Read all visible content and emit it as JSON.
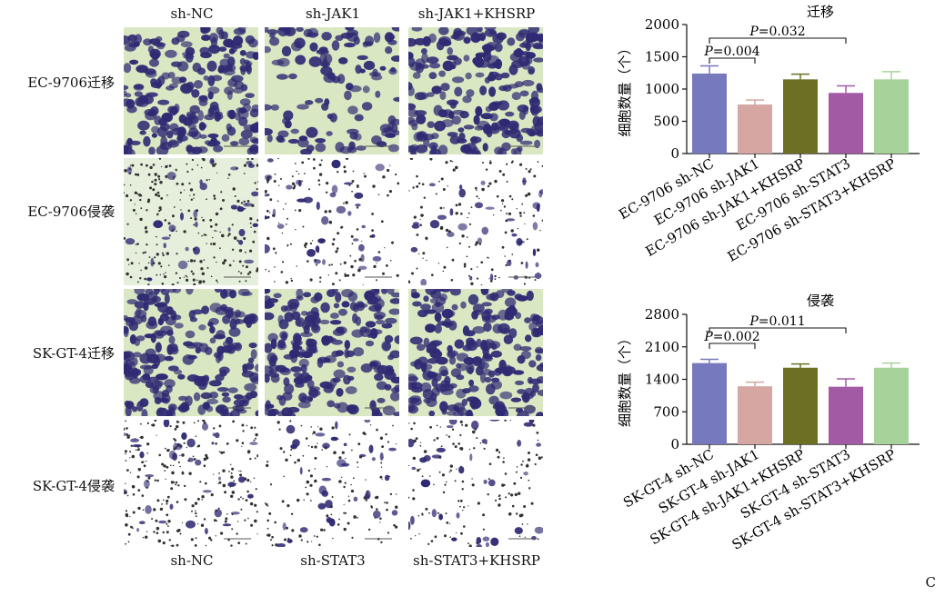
{
  "figure": {
    "col_labels_top": [
      "sh-NC",
      "sh-JAK1",
      "sh-JAK1+KHSRP"
    ],
    "col_labels_bottom": [
      "sh-NC",
      "sh-STAT3",
      "sh-STAT3+KHSRP"
    ],
    "row_labels": [
      "EC-9706迁移",
      "EC-9706侵袭",
      "SK-GT-4迁移",
      "SK-GT-4侵袭"
    ],
    "panel_letter": "C",
    "micrograph_style": {
      "migration_background": "#d9e8c3",
      "invasion_background": "#ffffff",
      "cell_color": "#2f2a73"
    }
  },
  "chart_data": [
    {
      "type": "bar",
      "title": "迁移",
      "ylabel": "细胞数量（个）",
      "xlabel": "",
      "ylim": [
        0,
        2000
      ],
      "yticks": [
        0,
        500,
        1000,
        1500,
        2000
      ],
      "categories": [
        "EC-9706 sh-NC",
        "EC-9706 sh-JAK1",
        "EC-9706 sh-JAK1+KHSRP",
        "EC-9706 sh-STAT3",
        "EC-9706 sh-STAT3+KHSRP"
      ],
      "values": [
        1240,
        760,
        1150,
        940,
        1150
      ],
      "errors": [
        120,
        70,
        80,
        110,
        120
      ],
      "colors": [
        "#7679bd",
        "#d5a6a2",
        "#6b7024",
        "#a35aa5",
        "#a7d39a"
      ],
      "annotations": [
        {
          "from": 0,
          "to": 1,
          "text": "P=0.004"
        },
        {
          "from": 0,
          "to": 3,
          "text": "P=0.032"
        }
      ]
    },
    {
      "type": "bar",
      "title": "侵袭",
      "ylabel": "细胞数量（个）",
      "xlabel": "",
      "ylim": [
        0,
        2800
      ],
      "yticks": [
        0,
        700,
        1400,
        2100,
        2800
      ],
      "categories": [
        "SK-GT-4 sh-NC",
        "SK-GT-4 sh-JAK1",
        "SK-GT-4 sh-JAK1+KHSRP",
        "SK-GT-4 sh-STAT3",
        "SK-GT-4 sh-STAT3+KHSRP"
      ],
      "values": [
        1750,
        1250,
        1650,
        1240,
        1650
      ],
      "errors": [
        80,
        90,
        80,
        170,
        100
      ],
      "colors": [
        "#7679bd",
        "#d5a6a2",
        "#6b7024",
        "#a35aa5",
        "#a7d39a"
      ],
      "annotations": [
        {
          "from": 0,
          "to": 1,
          "text": "P=0.002"
        },
        {
          "from": 0,
          "to": 3,
          "text": "P=0.011"
        }
      ]
    }
  ]
}
